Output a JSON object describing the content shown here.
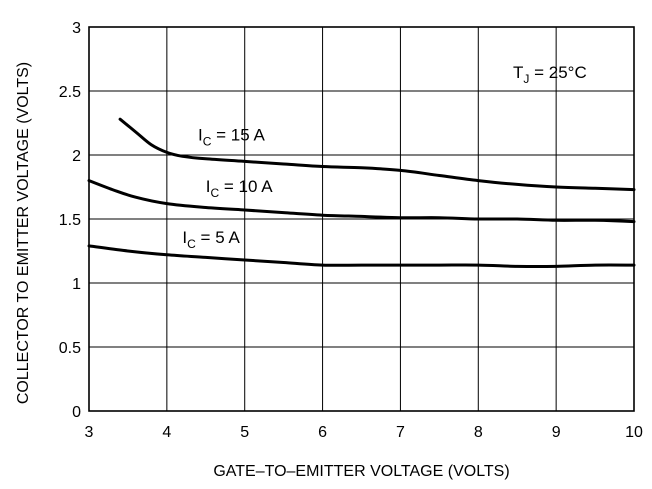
{
  "chart_data": {
    "type": "line",
    "xlabel": "GATE–TO–EMITTER VOLTAGE (VOLTS)",
    "ylabel": "COLLECTOR TO EMITTER VOLTAGE (VOLTS)",
    "xlim": [
      3,
      10
    ],
    "ylim": [
      0,
      3
    ],
    "xticks": [
      3,
      4,
      5,
      6,
      7,
      8,
      9,
      10
    ],
    "xtick_labels": [
      "3",
      "4",
      "5",
      "6",
      "7",
      "8",
      "9",
      "10"
    ],
    "yticks": [
      0,
      0.5,
      1,
      1.5,
      2,
      2.5,
      3
    ],
    "ytick_labels": [
      "0",
      "0.5",
      "1",
      "1.5",
      "2",
      "2.5",
      "3"
    ],
    "grid": true,
    "annotation": {
      "main": "T",
      "sub": "J",
      "rest": " = 25°C"
    },
    "series": [
      {
        "label": {
          "main": "I",
          "sub": "C",
          "rest": " = 15 A"
        },
        "x": [
          3.4,
          3.6,
          3.8,
          4.0,
          4.2,
          4.5,
          5.0,
          5.5,
          6.0,
          6.5,
          7.0,
          7.5,
          8.0,
          8.5,
          9.0,
          9.5,
          10.0
        ],
        "y": [
          2.28,
          2.18,
          2.08,
          2.02,
          1.99,
          1.97,
          1.95,
          1.93,
          1.91,
          1.9,
          1.88,
          1.84,
          1.8,
          1.77,
          1.75,
          1.74,
          1.73
        ]
      },
      {
        "label": {
          "main": "I",
          "sub": "C",
          "rest": " = 10 A"
        },
        "x": [
          3.0,
          3.3,
          3.6,
          4.0,
          4.5,
          5.0,
          5.5,
          6.0,
          6.5,
          7.0,
          7.5,
          8.0,
          8.5,
          9.0,
          9.5,
          10.0
        ],
        "y": [
          1.8,
          1.73,
          1.67,
          1.62,
          1.59,
          1.57,
          1.55,
          1.53,
          1.52,
          1.51,
          1.51,
          1.5,
          1.5,
          1.49,
          1.49,
          1.48
        ]
      },
      {
        "label": {
          "main": "I",
          "sub": "C",
          "rest": " = 5 A"
        },
        "x": [
          3.0,
          3.5,
          4.0,
          4.5,
          5.0,
          5.5,
          6.0,
          6.5,
          7.0,
          7.5,
          8.0,
          8.5,
          9.0,
          9.5,
          10.0
        ],
        "y": [
          1.29,
          1.25,
          1.22,
          1.2,
          1.18,
          1.16,
          1.14,
          1.14,
          1.14,
          1.14,
          1.14,
          1.13,
          1.13,
          1.14,
          1.14
        ]
      }
    ]
  }
}
